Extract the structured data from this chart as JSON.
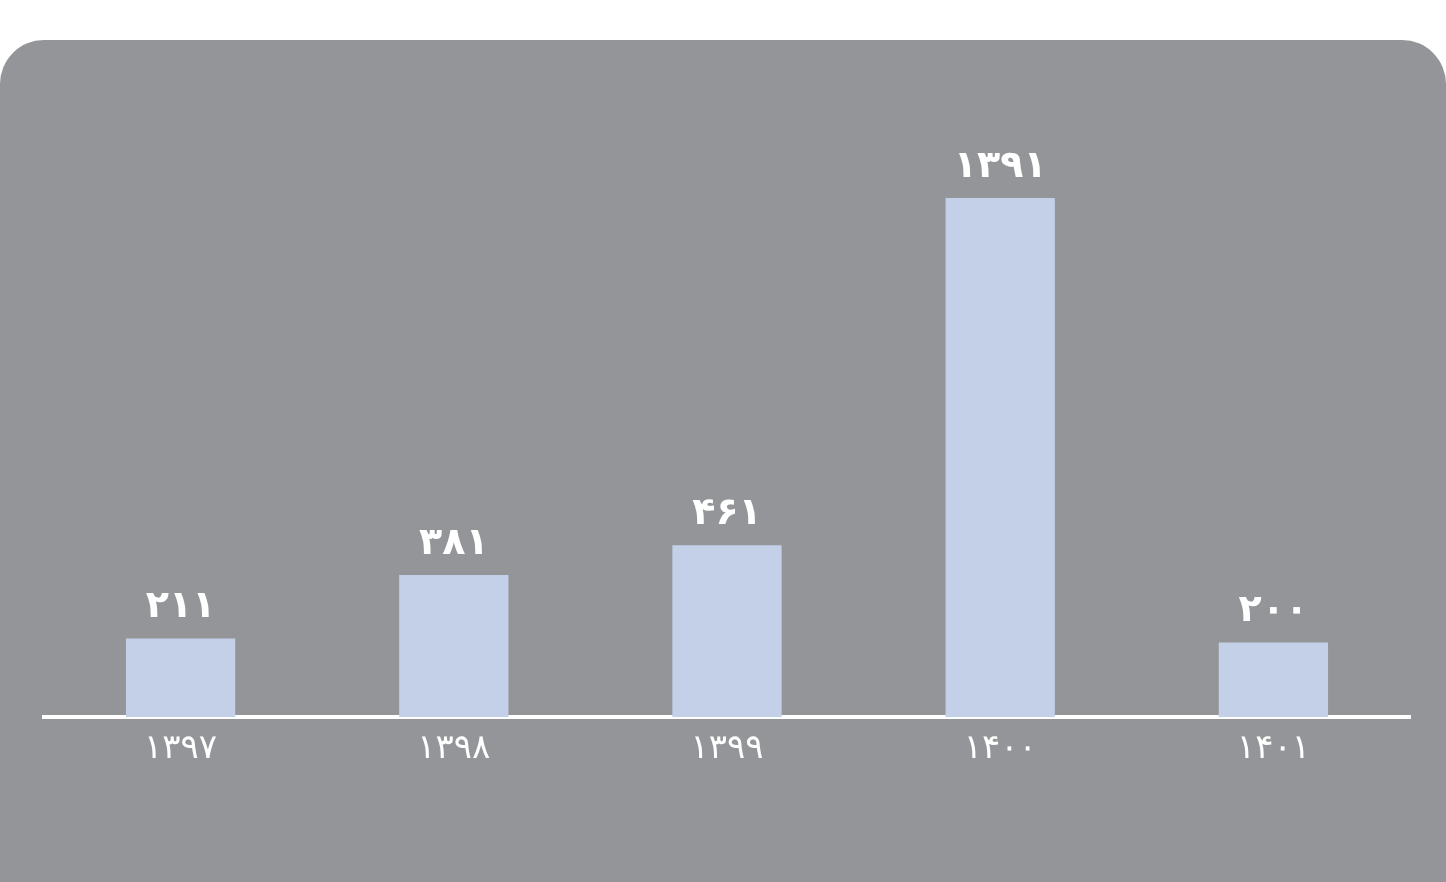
{
  "chart_data": {
    "type": "bar",
    "categories": [
      "۱۳۹۷",
      "۱۳۹۸",
      "۱۳۹۹",
      "۱۴۰۰",
      "۱۴۰۱"
    ],
    "values": [
      211,
      381,
      461,
      1391,
      200
    ],
    "value_labels": [
      "۲۱۱",
      "۳۸۱",
      "۴۶۱",
      "۱۳۹۱",
      "۲۰۰"
    ],
    "color": "#c3d0e8",
    "grid": false,
    "legend": false
  }
}
